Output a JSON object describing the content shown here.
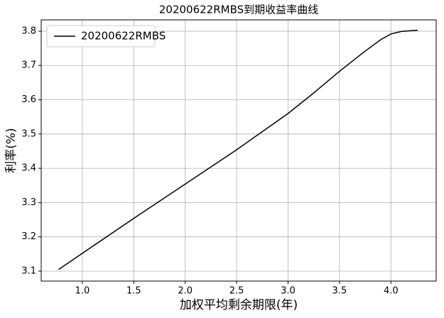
{
  "chart_data": {
    "type": "line",
    "title": "20200622RMBS到期收益率曲线",
    "x_label": "加权平均剩余期限(年)",
    "y_label": "利率(%)",
    "x": [
      0.77,
      1.0,
      1.5,
      2.0,
      2.5,
      3.0,
      3.25,
      3.5,
      3.75,
      3.9,
      4.0,
      4.1,
      4.26
    ],
    "series": [
      {
        "name": "20200622RMBS",
        "color": "#000000",
        "values": [
          3.105,
          3.152,
          3.254,
          3.354,
          3.454,
          3.56,
          3.62,
          3.683,
          3.742,
          3.775,
          3.792,
          3.799,
          3.803
        ]
      }
    ],
    "xlim": [
      0.6,
      4.44
    ],
    "ylim": [
      3.071,
      3.833
    ],
    "xticks": [
      {
        "value": 1.0,
        "label": "1.0"
      },
      1.5,
      {
        "value": 2.0,
        "label": "2.0"
      },
      2.5,
      {
        "value": 3.0,
        "label": "3.0"
      },
      3.5,
      {
        "value": 4.0,
        "label": "4.0"
      }
    ],
    "yticks": [
      3.1,
      3.2,
      3.3,
      3.4,
      3.5,
      3.6,
      3.7,
      3.8
    ],
    "grid": true,
    "legend": "upper left"
  }
}
